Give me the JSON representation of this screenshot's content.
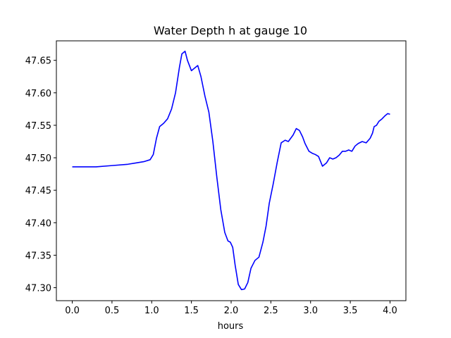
{
  "chart_data": {
    "type": "line",
    "title": "Water Depth h at gauge 10",
    "xlabel": "hours",
    "ylabel": "",
    "xlim": [
      -0.2,
      4.2
    ],
    "ylim": [
      47.28,
      47.68
    ],
    "x_ticks": [
      0.0,
      0.5,
      1.0,
      1.5,
      2.0,
      2.5,
      3.0,
      3.5,
      4.0
    ],
    "x_tick_labels": [
      "0.0",
      "0.5",
      "1.0",
      "1.5",
      "2.0",
      "2.5",
      "3.0",
      "3.5",
      "4.0"
    ],
    "y_ticks": [
      47.3,
      47.35,
      47.4,
      47.45,
      47.5,
      47.55,
      47.6,
      47.65
    ],
    "y_tick_labels": [
      "47.30",
      "47.35",
      "47.40",
      "47.45",
      "47.50",
      "47.55",
      "47.60",
      "47.65"
    ],
    "grid": false,
    "series": [
      {
        "color": "#0000ff",
        "x": [
          0.0,
          0.3,
          0.5,
          0.7,
          0.8,
          0.9,
          0.98,
          1.02,
          1.06,
          1.1,
          1.15,
          1.2,
          1.25,
          1.3,
          1.35,
          1.38,
          1.42,
          1.45,
          1.5,
          1.53,
          1.58,
          1.62,
          1.67,
          1.72,
          1.77,
          1.82,
          1.87,
          1.92,
          1.96,
          1.99,
          2.02,
          2.05,
          2.09,
          2.13,
          2.17,
          2.21,
          2.25,
          2.3,
          2.35,
          2.4,
          2.44,
          2.48,
          2.53,
          2.58,
          2.63,
          2.68,
          2.72,
          2.78,
          2.82,
          2.86,
          2.9,
          2.93,
          2.98,
          3.02,
          3.06,
          3.1,
          3.15,
          3.2,
          3.24,
          3.28,
          3.32,
          3.36,
          3.4,
          3.44,
          3.48,
          3.52,
          3.56,
          3.6,
          3.65,
          3.7,
          3.75,
          3.78,
          3.8,
          3.83,
          3.86,
          3.9,
          3.94,
          3.97,
          4.0
        ],
        "y": [
          47.486,
          47.486,
          47.488,
          47.49,
          47.492,
          47.494,
          47.497,
          47.505,
          47.53,
          47.548,
          47.553,
          47.56,
          47.575,
          47.6,
          47.64,
          47.66,
          47.664,
          47.65,
          47.634,
          47.637,
          47.642,
          47.625,
          47.595,
          47.57,
          47.525,
          47.47,
          47.42,
          47.385,
          47.372,
          47.37,
          47.362,
          47.335,
          47.305,
          47.297,
          47.298,
          47.308,
          47.33,
          47.342,
          47.347,
          47.37,
          47.395,
          47.43,
          47.46,
          47.493,
          47.523,
          47.527,
          47.525,
          47.535,
          47.545,
          47.542,
          47.532,
          47.522,
          47.51,
          47.507,
          47.505,
          47.502,
          47.487,
          47.492,
          47.5,
          47.498,
          47.5,
          47.504,
          47.51,
          47.51,
          47.512,
          47.51,
          47.518,
          47.522,
          47.525,
          47.523,
          47.53,
          47.538,
          47.548,
          47.55,
          47.556,
          47.56,
          47.565,
          47.568,
          47.567
        ]
      }
    ]
  }
}
